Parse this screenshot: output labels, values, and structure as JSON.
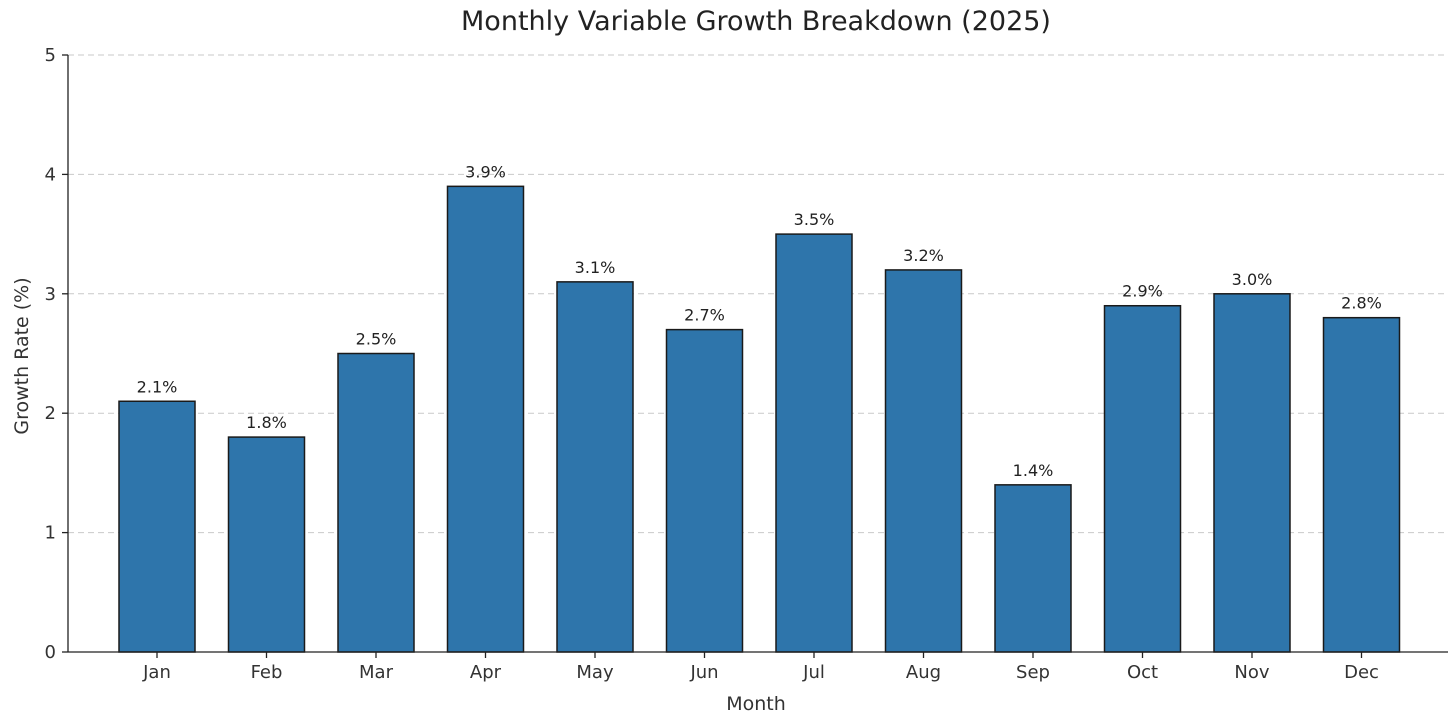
{
  "chart_data": {
    "type": "bar",
    "title": "Monthly Variable Growth Breakdown (2025)",
    "xlabel": "Month",
    "ylabel": "Growth Rate (%)",
    "categories": [
      "Jan",
      "Feb",
      "Mar",
      "Apr",
      "May",
      "Jun",
      "Jul",
      "Aug",
      "Sep",
      "Oct",
      "Nov",
      "Dec"
    ],
    "values": [
      2.1,
      1.8,
      2.5,
      3.9,
      3.1,
      2.7,
      3.5,
      3.2,
      1.4,
      2.9,
      3.0,
      2.8
    ],
    "data_labels": [
      "2.1%",
      "1.8%",
      "2.5%",
      "3.9%",
      "3.1%",
      "2.7%",
      "3.5%",
      "3.2%",
      "1.4%",
      "2.9%",
      "3.0%",
      "2.8%"
    ],
    "ylim": [
      0,
      5
    ],
    "yticks": [
      "0",
      "1",
      "2",
      "3",
      "4",
      "5"
    ],
    "grid": true,
    "bar_color": "#2e75ab"
  }
}
